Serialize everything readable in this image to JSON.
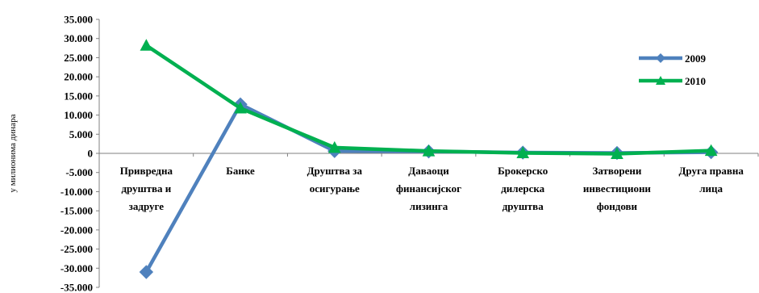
{
  "chart_data": {
    "type": "line",
    "ylabel": "у милионима динара",
    "ylim": [
      -35000,
      35000
    ],
    "ytick_step": 5000,
    "ytick_labels": [
      "35.000",
      "30.000",
      "25.000",
      "20.000",
      "15.000",
      "10.000",
      "5.000",
      "0",
      "-5.000",
      "-10.000",
      "-15.000",
      "-20.000",
      "-25.000",
      "-30.000",
      "-35.000"
    ],
    "categories": [
      [
        "Привредна",
        "друштва и",
        "задруге"
      ],
      [
        "Банке"
      ],
      [
        "Друштва за",
        "осигурање"
      ],
      [
        "Даваоци",
        "финансијског",
        "лизинга"
      ],
      [
        "Брокерско",
        "дилерска",
        "друштва"
      ],
      [
        "Затворени",
        "инвестициони",
        "фондови"
      ],
      [
        "Друга правна",
        "лица"
      ]
    ],
    "series": [
      {
        "name": "2009",
        "color": "#4f81bd",
        "marker": "diamond",
        "values": [
          -31000,
          12800,
          600,
          500,
          200,
          100,
          300
        ]
      },
      {
        "name": "2010",
        "color": "#00b050",
        "marker": "triangle",
        "values": [
          28200,
          11800,
          1500,
          600,
          100,
          -100,
          700
        ]
      }
    ],
    "legend_position": "right",
    "grid": false
  }
}
